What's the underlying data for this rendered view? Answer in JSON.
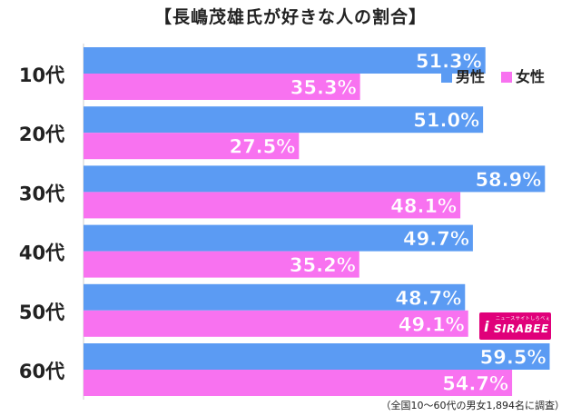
{
  "title": "【長嶋茂雄氏が好きな人の割合】",
  "note": "（全国10～60代の男女1,894名に調査）",
  "logo": {
    "small_text": "ニュースサイトしらべぇ",
    "text": "SIRABEE",
    "mark": "i"
  },
  "colors": {
    "male": "#5b9bf3",
    "female": "#f872f0",
    "label": "#ffffff",
    "text": "#222222"
  },
  "chart_data": {
    "type": "bar",
    "orientation": "horizontal",
    "categories": [
      "10代",
      "20代",
      "30代",
      "40代",
      "50代",
      "60代"
    ],
    "series": [
      {
        "name": "男性",
        "values": [
          51.3,
          51.0,
          58.9,
          49.7,
          48.7,
          59.5
        ]
      },
      {
        "name": "女性",
        "values": [
          35.3,
          27.5,
          48.1,
          35.2,
          49.1,
          54.7
        ]
      }
    ],
    "data_labels": {
      "男性": [
        "51.3%",
        "51.0%",
        "58.9%",
        "49.7%",
        "48.7%",
        "59.5%"
      ],
      "女性": [
        "35.3%",
        "27.5%",
        "48.1%",
        "35.2%",
        "49.1%",
        "54.7%"
      ]
    },
    "legend": {
      "position": "top-right",
      "entries": [
        "男性",
        "女性"
      ]
    },
    "xlim": [
      0,
      60
    ],
    "grid": false
  }
}
